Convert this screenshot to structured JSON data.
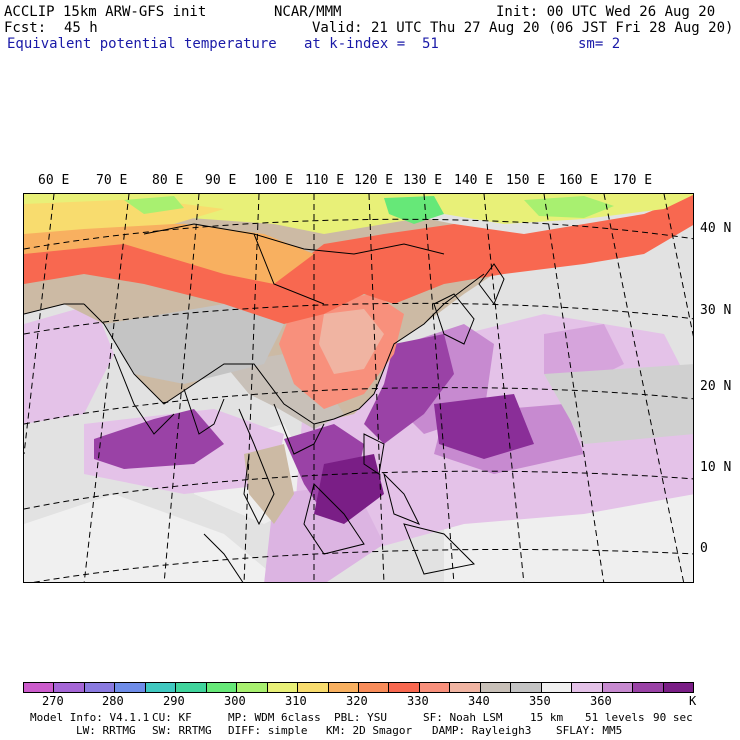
{
  "header": {
    "model": "ACCLIP 15km ARW-GFS init",
    "org": "NCAR/MMM",
    "init": "Init: 00 UTC Wed 26 Aug 20",
    "fcst_label": "Fcst:",
    "fcst_value": "45 h",
    "valid": "Valid: 21 UTC Thu 27 Aug 20 (06 JST Fri 28 Aug 20)",
    "field": "Equivalent potential temperature",
    "level": "at k-index =  51",
    "smooth": "sm= 2"
  },
  "map": {
    "longitude_labels": [
      "60 E",
      "70 E",
      "80 E",
      "90 E",
      "100 E",
      "110 E",
      "120 E",
      "130 E",
      "140 E",
      "150 E",
      "160 E",
      "170 E"
    ],
    "latitude_labels": [
      "40 N",
      "30 N",
      "20 N",
      "10 N",
      "0"
    ],
    "colors": {
      "ocean_base": "#e2e2e2",
      "land": "#ccbaa4"
    }
  },
  "colorbar": {
    "colors": [
      "#cc5ccc",
      "#a566d6",
      "#8a7ae0",
      "#6e8ce8",
      "#40c8c0",
      "#40d49c",
      "#66e878",
      "#a8f070",
      "#e8f078",
      "#f8dc6e",
      "#f8b060",
      "#f88c5a",
      "#f86850",
      "#f8907c",
      "#f0b4a2",
      "#c8c0b8",
      "#c4c4c4",
      "#f0f0f0",
      "#e4c2e8",
      "#c78ad0",
      "#9a42a6",
      "#7a1e86"
    ],
    "tick_labels": [
      "270",
      "280",
      "290",
      "300",
      "310",
      "320",
      "330",
      "340",
      "350",
      "360"
    ],
    "unit": "K"
  },
  "footer": {
    "line1": [
      "Model Info: V4.1.1",
      "CU: KF",
      "MP: WDM 6class",
      "PBL: YSU",
      "SF: Noah LSM",
      "15 km",
      "51 levels",
      "90 sec"
    ],
    "line2": [
      "LW: RRTMG",
      "SW: RRTMG",
      "DIFF: simple",
      "KM: 2D Smagor",
      "DAMP: Rayleigh3",
      "SFLAY: MM5"
    ]
  }
}
